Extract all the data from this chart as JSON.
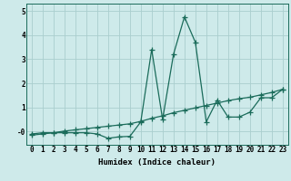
{
  "xlabel": "Humidex (Indice chaleur)",
  "ylabel": "",
  "background_color": "#ceeaea",
  "grid_color": "#aacece",
  "line_color": "#1a6b5a",
  "x_humidex": [
    0,
    1,
    2,
    3,
    4,
    5,
    6,
    7,
    8,
    9,
    10,
    11,
    12,
    13,
    14,
    15,
    16,
    17,
    18,
    19,
    20,
    21,
    22,
    23
  ],
  "y_curve": [
    -0.1,
    -0.05,
    -0.05,
    -0.05,
    -0.05,
    -0.05,
    -0.1,
    -0.28,
    -0.22,
    -0.2,
    0.4,
    3.4,
    0.5,
    3.2,
    4.75,
    3.7,
    0.4,
    1.3,
    0.6,
    0.6,
    0.8,
    1.4,
    1.4,
    1.75
  ],
  "y_linear": [
    -0.15,
    -0.1,
    -0.05,
    0.02,
    0.07,
    0.12,
    0.17,
    0.22,
    0.27,
    0.32,
    0.42,
    0.55,
    0.65,
    0.78,
    0.88,
    0.98,
    1.08,
    1.18,
    1.28,
    1.36,
    1.42,
    1.52,
    1.62,
    1.75
  ],
  "ylim": [
    -0.55,
    5.3
  ],
  "xlim": [
    -0.5,
    23.5
  ],
  "yticks": [
    0,
    1,
    2,
    3,
    4,
    5
  ],
  "ytick_labels": [
    "-0",
    "1",
    "2",
    "3",
    "4",
    "5"
  ],
  "xticks": [
    0,
    1,
    2,
    3,
    4,
    5,
    6,
    7,
    8,
    9,
    10,
    11,
    12,
    13,
    14,
    15,
    16,
    17,
    18,
    19,
    20,
    21,
    22,
    23
  ],
  "marker": "+",
  "markersize": 4,
  "linewidth": 0.9,
  "axis_fontsize": 6.5,
  "tick_fontsize": 5.5
}
